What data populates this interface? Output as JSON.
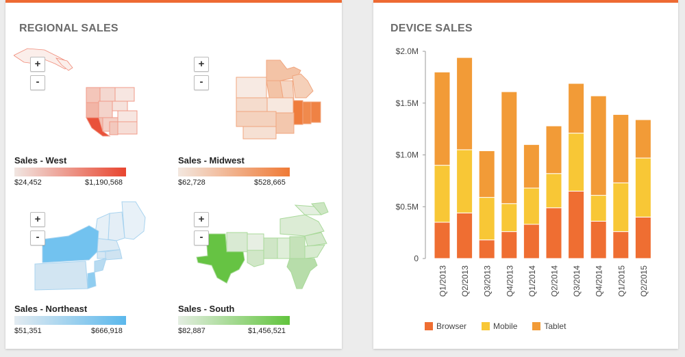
{
  "left_panel": {
    "title": "REGIONAL SALES",
    "zoom_in": "+",
    "zoom_out": "-",
    "regions": [
      {
        "label": "Sales - West",
        "min": "$24,452",
        "max": "$1,190,568",
        "color_low": "#f1e6e2",
        "color_high": "#e8452f"
      },
      {
        "label": "Sales - Midwest",
        "min": "$62,728",
        "max": "$528,665",
        "color_low": "#f3e7df",
        "color_high": "#ef7a36"
      },
      {
        "label": "Sales - Northeast",
        "min": "$51,351",
        "max": "$666,918",
        "color_low": "#e3ebf1",
        "color_high": "#5bb8ec"
      },
      {
        "label": "Sales - South",
        "min": "$82,887",
        "max": "$1,456,521",
        "color_low": "#e4eee2",
        "color_high": "#61c43d"
      }
    ]
  },
  "right_panel": {
    "title": "DEVICE SALES"
  },
  "chart_data": {
    "type": "bar",
    "stacked": true,
    "title": "DEVICE SALES",
    "categories": [
      "Q1/2013",
      "Q2/2013",
      "Q3/2013",
      "Q4/2013",
      "Q1/2014",
      "Q2/2014",
      "Q3/2014",
      "Q4/2014",
      "Q1/2015",
      "Q2/2015"
    ],
    "series": [
      {
        "name": "Browser",
        "color": "#ef6e32",
        "values": [
          0.35,
          0.44,
          0.18,
          0.26,
          0.33,
          0.49,
          0.65,
          0.36,
          0.26,
          0.4
        ]
      },
      {
        "name": "Mobile",
        "color": "#f8c736",
        "values": [
          0.55,
          0.61,
          0.41,
          0.27,
          0.35,
          0.33,
          0.56,
          0.25,
          0.47,
          0.57
        ]
      },
      {
        "name": "Tablet",
        "color": "#f29b37",
        "values": [
          0.9,
          0.89,
          0.45,
          1.08,
          0.42,
          0.46,
          0.48,
          0.96,
          0.66,
          0.37
        ]
      }
    ],
    "ylim": [
      0,
      2.0
    ],
    "yticks": [
      0,
      0.5,
      1.0,
      1.5,
      2.0
    ],
    "ytick_labels": [
      "0",
      "$0.5M",
      "$1.0M",
      "$1.5M",
      "$2.0M"
    ],
    "grid": false,
    "legend_position": "bottom"
  }
}
